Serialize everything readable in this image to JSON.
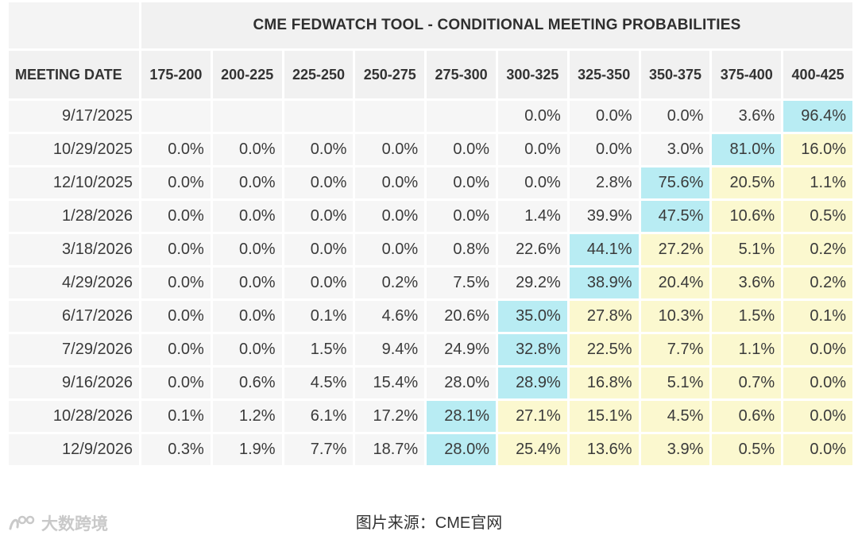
{
  "table": {
    "title": "CME FEDWATCH TOOL - CONDITIONAL MEETING PROBABILITIES",
    "date_header": "MEETING DATE"
  },
  "footer": {
    "credit": "图片来源：CME官网",
    "watermark": "大数跨境"
  },
  "colors": {
    "highest": "#b8ecf3",
    "secondary": "#fbf8cf",
    "default": "#f6f6f6"
  },
  "chart_data": {
    "type": "table",
    "title": "CME FEDWATCH TOOL - CONDITIONAL MEETING PROBABILITIES",
    "columns": [
      "175-200",
      "200-225",
      "225-250",
      "250-275",
      "275-300",
      "300-325",
      "325-350",
      "350-375",
      "375-400",
      "400-425"
    ],
    "rows": [
      {
        "date": "9/17/2025",
        "values": [
          "",
          "",
          "",
          "",
          "",
          "0.0%",
          "0.0%",
          "0.0%",
          "3.6%",
          "96.4%"
        ],
        "shade": [
          "",
          "",
          "",
          "",
          "",
          "",
          "",
          "",
          "",
          "hi"
        ]
      },
      {
        "date": "10/29/2025",
        "values": [
          "0.0%",
          "0.0%",
          "0.0%",
          "0.0%",
          "0.0%",
          "0.0%",
          "0.0%",
          "3.0%",
          "81.0%",
          "16.0%"
        ],
        "shade": [
          "",
          "",
          "",
          "",
          "",
          "",
          "",
          "",
          "hi",
          "mid"
        ]
      },
      {
        "date": "12/10/2025",
        "values": [
          "0.0%",
          "0.0%",
          "0.0%",
          "0.0%",
          "0.0%",
          "0.0%",
          "2.8%",
          "75.6%",
          "20.5%",
          "1.1%"
        ],
        "shade": [
          "",
          "",
          "",
          "",
          "",
          "",
          "",
          "hi",
          "mid",
          "mid"
        ]
      },
      {
        "date": "1/28/2026",
        "values": [
          "0.0%",
          "0.0%",
          "0.0%",
          "0.0%",
          "0.0%",
          "1.4%",
          "39.9%",
          "47.5%",
          "10.6%",
          "0.5%"
        ],
        "shade": [
          "",
          "",
          "",
          "",
          "",
          "",
          "",
          "hi",
          "mid",
          "mid"
        ]
      },
      {
        "date": "3/18/2026",
        "values": [
          "0.0%",
          "0.0%",
          "0.0%",
          "0.0%",
          "0.8%",
          "22.6%",
          "44.1%",
          "27.2%",
          "5.1%",
          "0.2%"
        ],
        "shade": [
          "",
          "",
          "",
          "",
          "",
          "",
          "hi",
          "mid",
          "mid",
          "mid"
        ]
      },
      {
        "date": "4/29/2026",
        "values": [
          "0.0%",
          "0.0%",
          "0.0%",
          "0.2%",
          "7.5%",
          "29.2%",
          "38.9%",
          "20.4%",
          "3.6%",
          "0.2%"
        ],
        "shade": [
          "",
          "",
          "",
          "",
          "",
          "",
          "hi",
          "mid",
          "mid",
          "mid"
        ]
      },
      {
        "date": "6/17/2026",
        "values": [
          "0.0%",
          "0.0%",
          "0.1%",
          "4.6%",
          "20.6%",
          "35.0%",
          "27.8%",
          "10.3%",
          "1.5%",
          "0.1%"
        ],
        "shade": [
          "",
          "",
          "",
          "",
          "",
          "hi",
          "mid",
          "mid",
          "mid",
          "mid"
        ]
      },
      {
        "date": "7/29/2026",
        "values": [
          "0.0%",
          "0.0%",
          "1.5%",
          "9.4%",
          "24.9%",
          "32.8%",
          "22.5%",
          "7.7%",
          "1.1%",
          "0.0%"
        ],
        "shade": [
          "",
          "",
          "",
          "",
          "",
          "hi",
          "mid",
          "mid",
          "mid",
          "mid"
        ]
      },
      {
        "date": "9/16/2026",
        "values": [
          "0.0%",
          "0.6%",
          "4.5%",
          "15.4%",
          "28.0%",
          "28.9%",
          "16.8%",
          "5.1%",
          "0.7%",
          "0.0%"
        ],
        "shade": [
          "",
          "",
          "",
          "",
          "",
          "hi",
          "mid",
          "mid",
          "mid",
          "mid"
        ]
      },
      {
        "date": "10/28/2026",
        "values": [
          "0.1%",
          "1.2%",
          "6.1%",
          "17.2%",
          "28.1%",
          "27.1%",
          "15.1%",
          "4.5%",
          "0.6%",
          "0.0%"
        ],
        "shade": [
          "",
          "",
          "",
          "",
          "hi",
          "mid",
          "mid",
          "mid",
          "mid",
          "mid"
        ]
      },
      {
        "date": "12/9/2026",
        "values": [
          "0.3%",
          "1.9%",
          "7.7%",
          "18.7%",
          "28.0%",
          "25.4%",
          "13.6%",
          "3.9%",
          "0.5%",
          "0.0%"
        ],
        "shade": [
          "",
          "",
          "",
          "",
          "hi",
          "mid",
          "mid",
          "mid",
          "mid",
          "mid"
        ]
      }
    ]
  }
}
